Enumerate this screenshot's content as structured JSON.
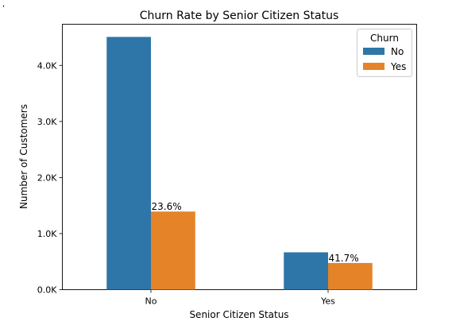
{
  "chart_data": {
    "type": "bar",
    "title": "Churn Rate by Senior Citizen Status",
    "xlabel": "Senior Citizen Status",
    "ylabel": "Number of Customers",
    "categories": [
      "No",
      "Yes"
    ],
    "series": [
      {
        "name": "No",
        "values": [
          4508,
          666
        ],
        "color": "#2e75a8"
      },
      {
        "name": "Yes",
        "values": [
          1393,
          476
        ],
        "color": "#e58329"
      }
    ],
    "data_labels": [
      "23.6%",
      "41.7%"
    ],
    "yticks": [
      0,
      1000,
      2000,
      3000,
      4000
    ],
    "ytick_labels": [
      "0.0K",
      "1.0K",
      "2.0K",
      "3.0K",
      "4.0K"
    ],
    "ylim": [
      0,
      4734
    ],
    "grid": false,
    "legend": {
      "title": "Churn",
      "placement": "top-right"
    }
  }
}
